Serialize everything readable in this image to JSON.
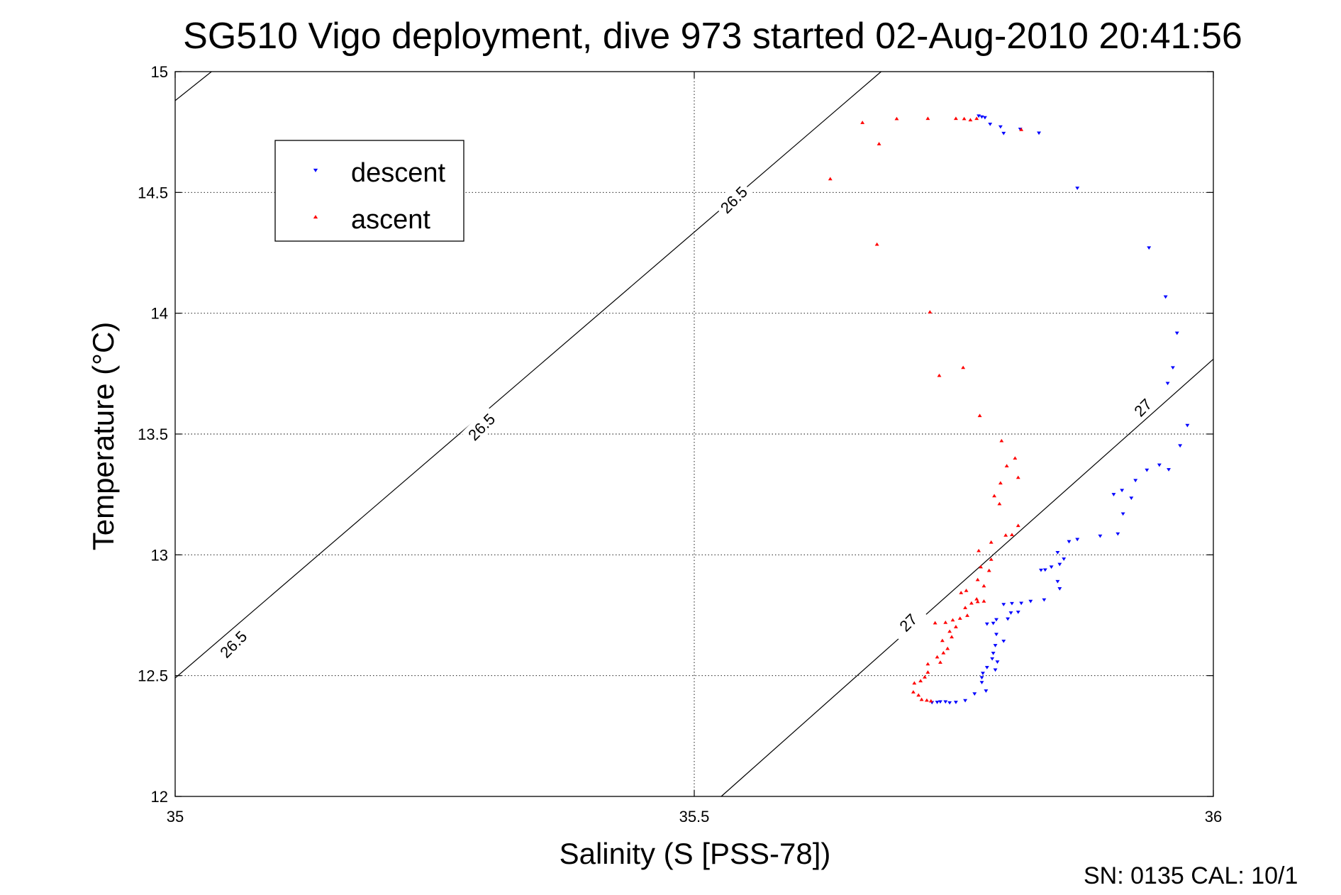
{
  "chart_data": {
    "type": "scatter",
    "title": "SG510 Vigo deployment, dive 973 started 02-Aug-2010 20:41:56",
    "xlabel": "Salinity (S [PSS-78])",
    "ylabel": "Temperature (°C)",
    "xlim": [
      35,
      36
    ],
    "ylim": [
      12,
      15
    ],
    "x_ticks": [
      "35",
      "35.5",
      "36"
    ],
    "y_ticks": [
      "12",
      "12.5",
      "13",
      "13.5",
      "14",
      "14.5",
      "15"
    ],
    "grid": true,
    "legend_position": "top-left",
    "footer": "SN: 0135  CAL: 10/1",
    "series": [
      {
        "name": "descent",
        "color": "#0000ff",
        "marker": "triangle-down",
        "points": [
          [
            35.774,
            14.817
          ],
          [
            35.777,
            14.813
          ],
          [
            35.78,
            14.81
          ],
          [
            35.785,
            14.783
          ],
          [
            35.795,
            14.772
          ],
          [
            35.798,
            14.745
          ],
          [
            35.814,
            14.762
          ],
          [
            35.832,
            14.746
          ],
          [
            35.869,
            14.518
          ],
          [
            35.938,
            14.271
          ],
          [
            35.954,
            14.068
          ],
          [
            35.965,
            13.918
          ],
          [
            35.961,
            13.775
          ],
          [
            35.956,
            13.71
          ],
          [
            35.975,
            13.536
          ],
          [
            35.968,
            13.452
          ],
          [
            35.948,
            13.372
          ],
          [
            35.957,
            13.353
          ],
          [
            35.936,
            13.351
          ],
          [
            35.925,
            13.308
          ],
          [
            35.912,
            13.267
          ],
          [
            35.904,
            13.25
          ],
          [
            35.921,
            13.235
          ],
          [
            35.913,
            13.17
          ],
          [
            35.908,
            13.087
          ],
          [
            35.891,
            13.078
          ],
          [
            35.869,
            13.064
          ],
          [
            35.861,
            13.055
          ],
          [
            35.85,
            13.01
          ],
          [
            35.856,
            12.983
          ],
          [
            35.852,
            12.961
          ],
          [
            35.844,
            12.95
          ],
          [
            35.838,
            12.938
          ],
          [
            35.834,
            12.937
          ],
          [
            35.85,
            12.89
          ],
          [
            35.852,
            12.86
          ],
          [
            35.837,
            12.814
          ],
          [
            35.824,
            12.808
          ],
          [
            35.815,
            12.8
          ],
          [
            35.806,
            12.799
          ],
          [
            35.798,
            12.795
          ],
          [
            35.812,
            12.763
          ],
          [
            35.805,
            12.76
          ],
          [
            35.802,
            12.735
          ],
          [
            35.791,
            12.732
          ],
          [
            35.788,
            12.717
          ],
          [
            35.782,
            12.714
          ],
          [
            35.791,
            12.671
          ],
          [
            35.798,
            12.643
          ],
          [
            35.79,
            12.625
          ],
          [
            35.788,
            12.593
          ],
          [
            35.787,
            12.57
          ],
          [
            35.792,
            12.557
          ],
          [
            35.79,
            12.524
          ],
          [
            35.782,
            12.534
          ],
          [
            35.778,
            12.51
          ],
          [
            35.777,
            12.492
          ],
          [
            35.777,
            12.472
          ],
          [
            35.781,
            12.437
          ],
          [
            35.77,
            12.425
          ],
          [
            35.761,
            12.397
          ],
          [
            35.752,
            12.39
          ],
          [
            35.746,
            12.388
          ],
          [
            35.742,
            12.392
          ],
          [
            35.737,
            12.392
          ],
          [
            35.734,
            12.39
          ],
          [
            35.729,
            12.389
          ]
        ]
      },
      {
        "name": "ascent",
        "color": "#ff0000",
        "marker": "triangle-up",
        "points": [
          [
            35.631,
            14.556
          ],
          [
            35.662,
            14.789
          ],
          [
            35.678,
            14.701
          ],
          [
            35.695,
            14.805
          ],
          [
            35.725,
            14.806
          ],
          [
            35.752,
            14.806
          ],
          [
            35.76,
            14.805
          ],
          [
            35.766,
            14.8
          ],
          [
            35.772,
            14.806
          ],
          [
            35.815,
            14.76
          ],
          [
            35.676,
            14.285
          ],
          [
            35.727,
            14.005
          ],
          [
            35.759,
            13.775
          ],
          [
            35.736,
            13.742
          ],
          [
            35.775,
            13.576
          ],
          [
            35.796,
            13.472
          ],
          [
            35.809,
            13.4
          ],
          [
            35.801,
            13.368
          ],
          [
            35.812,
            13.32
          ],
          [
            35.795,
            13.297
          ],
          [
            35.789,
            13.244
          ],
          [
            35.794,
            13.211
          ],
          [
            35.812,
            13.121
          ],
          [
            35.806,
            13.083
          ],
          [
            35.8,
            13.081
          ],
          [
            35.786,
            13.052
          ],
          [
            35.774,
            13.017
          ],
          [
            35.786,
            12.981
          ],
          [
            35.776,
            12.95
          ],
          [
            35.784,
            12.935
          ],
          [
            35.773,
            12.897
          ],
          [
            35.779,
            12.871
          ],
          [
            35.762,
            12.852
          ],
          [
            35.757,
            12.843
          ],
          [
            35.772,
            12.817
          ],
          [
            35.779,
            12.808
          ],
          [
            35.773,
            12.806
          ],
          [
            35.767,
            12.8
          ],
          [
            35.761,
            12.781
          ],
          [
            35.763,
            12.749
          ],
          [
            35.756,
            12.737
          ],
          [
            35.749,
            12.73
          ],
          [
            35.742,
            12.72
          ],
          [
            35.732,
            12.718
          ],
          [
            35.752,
            12.702
          ],
          [
            35.746,
            12.683
          ],
          [
            35.748,
            12.66
          ],
          [
            35.739,
            12.645
          ],
          [
            35.744,
            12.612
          ],
          [
            35.74,
            12.594
          ],
          [
            35.734,
            12.577
          ],
          [
            35.737,
            12.555
          ],
          [
            35.725,
            12.548
          ],
          [
            35.725,
            12.514
          ],
          [
            35.722,
            12.494
          ],
          [
            35.718,
            12.478
          ],
          [
            35.712,
            12.469
          ],
          [
            35.711,
            12.432
          ],
          [
            35.716,
            12.419
          ],
          [
            35.719,
            12.401
          ],
          [
            35.724,
            12.398
          ],
          [
            35.728,
            12.395
          ]
        ]
      }
    ],
    "isopycnals": [
      {
        "label": "26.5",
        "points": [
          [
            35.0,
            14.88
          ],
          [
            35.035,
            15.0
          ]
        ]
      },
      {
        "label": "26.5",
        "points": [
          [
            35.0,
            12.49
          ],
          [
            35.68,
            15.0
          ]
        ]
      },
      {
        "label": "27",
        "points": [
          [
            35.526,
            12.0
          ],
          [
            36.0,
            13.81
          ]
        ]
      }
    ],
    "contour_labels": [
      {
        "text": "26.5",
        "at": [
          35.056,
          12.63
        ],
        "angle": -45
      },
      {
        "text": "26.5",
        "at": [
          35.295,
          13.53
        ],
        "angle": -45
      },
      {
        "text": "26.5",
        "at": [
          35.538,
          14.47
        ],
        "angle": -45
      },
      {
        "text": "27",
        "at": [
          35.706,
          12.72
        ],
        "angle": -45
      },
      {
        "text": "27",
        "at": [
          35.932,
          13.61
        ],
        "angle": -45
      }
    ]
  }
}
